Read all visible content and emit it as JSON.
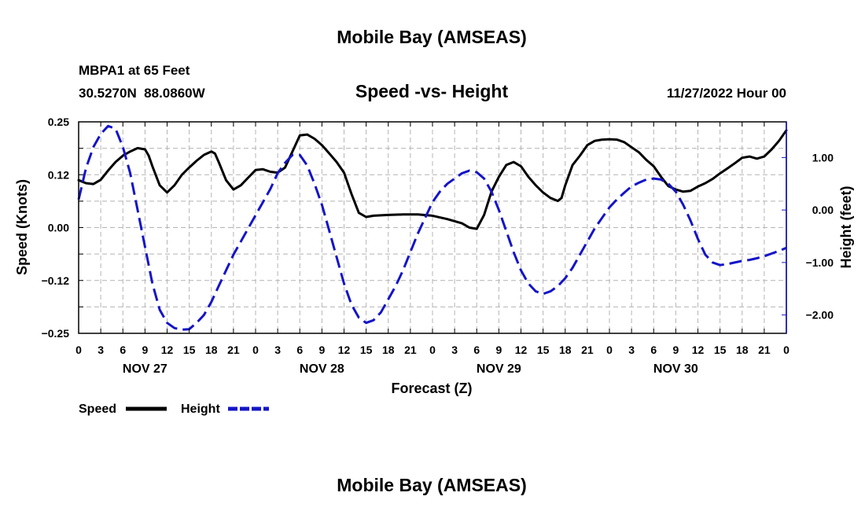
{
  "page": {
    "title_top": "Mobile Bay (AMSEAS)",
    "title_bottom": "Mobile Bay (AMSEAS)",
    "station_line": "MBPA1 at 65 Feet",
    "coords_line": "30.5270N  88.0860W",
    "chart_title": "Speed -vs- Height",
    "date_line": "11/27/2022 Hour 00"
  },
  "legend": {
    "speed_label": "Speed",
    "height_label": "Height"
  },
  "colors": {
    "speed": "#000000",
    "height": "#1414c8",
    "grid": "#b4b4b4",
    "axis": "#000000"
  },
  "chart_data": {
    "type": "line",
    "title": "Speed -vs- Height",
    "xlabel": "Forecast (Z)",
    "ylabel_left": "Speed (Knots)",
    "ylabel_right": "Height (feet)",
    "x_range_hours": [
      0,
      96
    ],
    "ylim_left": [
      -0.25,
      0.25
    ],
    "ylim_right": [
      -2.35,
      1.68
    ],
    "left_ticks": [
      {
        "value": 0.25,
        "label": "0.25"
      },
      {
        "value": 0.125,
        "label": "0.12"
      },
      {
        "value": 0.0,
        "label": "0.00"
      },
      {
        "value": -0.125,
        "label": "−0.12"
      },
      {
        "value": -0.25,
        "label": "−0.25"
      }
    ],
    "right_ticks": [
      {
        "value": 1.0,
        "label": "1.00"
      },
      {
        "value": 0.0,
        "label": "0.00"
      },
      {
        "value": -1.0,
        "label": "−1.00"
      },
      {
        "value": -2.0,
        "label": "−2.00"
      }
    ],
    "x_ticks": [
      {
        "hour": 0,
        "label": "0"
      },
      {
        "hour": 3,
        "label": "3"
      },
      {
        "hour": 6,
        "label": "6"
      },
      {
        "hour": 9,
        "label": "9"
      },
      {
        "hour": 12,
        "label": "12"
      },
      {
        "hour": 15,
        "label": "15"
      },
      {
        "hour": 18,
        "label": "18"
      },
      {
        "hour": 21,
        "label": "21"
      },
      {
        "hour": 24,
        "label": "0"
      },
      {
        "hour": 27,
        "label": "3"
      },
      {
        "hour": 30,
        "label": "6"
      },
      {
        "hour": 33,
        "label": "9"
      },
      {
        "hour": 36,
        "label": "12"
      },
      {
        "hour": 39,
        "label": "15"
      },
      {
        "hour": 42,
        "label": "18"
      },
      {
        "hour": 45,
        "label": "21"
      },
      {
        "hour": 48,
        "label": "0"
      },
      {
        "hour": 51,
        "label": "3"
      },
      {
        "hour": 54,
        "label": "6"
      },
      {
        "hour": 57,
        "label": "9"
      },
      {
        "hour": 60,
        "label": "12"
      },
      {
        "hour": 63,
        "label": "15"
      },
      {
        "hour": 66,
        "label": "18"
      },
      {
        "hour": 69,
        "label": "21"
      },
      {
        "hour": 72,
        "label": "0"
      },
      {
        "hour": 75,
        "label": "3"
      },
      {
        "hour": 78,
        "label": "6"
      },
      {
        "hour": 81,
        "label": "9"
      },
      {
        "hour": 84,
        "label": "12"
      },
      {
        "hour": 87,
        "label": "15"
      },
      {
        "hour": 90,
        "label": "18"
      },
      {
        "hour": 93,
        "label": "21"
      },
      {
        "hour": 96,
        "label": "0"
      }
    ],
    "day_labels": [
      {
        "hour": 9,
        "label": "NOV 27"
      },
      {
        "hour": 33,
        "label": "NOV 28"
      },
      {
        "hour": 57,
        "label": "NOV 29"
      },
      {
        "hour": 81,
        "label": "NOV 30"
      }
    ],
    "series": [
      {
        "name": "Speed",
        "axis": "left",
        "style": "solid",
        "points": [
          [
            0,
            0.112
          ],
          [
            1,
            0.105
          ],
          [
            2,
            0.103
          ],
          [
            3,
            0.113
          ],
          [
            4,
            0.135
          ],
          [
            5,
            0.155
          ],
          [
            6,
            0.17
          ],
          [
            7,
            0.18
          ],
          [
            8,
            0.188
          ],
          [
            9,
            0.185
          ],
          [
            9.5,
            0.17
          ],
          [
            10,
            0.145
          ],
          [
            11,
            0.1
          ],
          [
            12,
            0.083
          ],
          [
            13,
            0.1
          ],
          [
            14,
            0.125
          ],
          [
            15,
            0.142
          ],
          [
            16,
            0.158
          ],
          [
            17,
            0.172
          ],
          [
            18,
            0.18
          ],
          [
            18.5,
            0.175
          ],
          [
            19,
            0.155
          ],
          [
            20,
            0.112
          ],
          [
            21,
            0.09
          ],
          [
            22,
            0.1
          ],
          [
            23,
            0.118
          ],
          [
            24,
            0.136
          ],
          [
            25,
            0.138
          ],
          [
            26,
            0.132
          ],
          [
            27,
            0.13
          ],
          [
            28,
            0.142
          ],
          [
            29,
            0.18
          ],
          [
            30,
            0.218
          ],
          [
            31,
            0.22
          ],
          [
            32,
            0.21
          ],
          [
            33,
            0.195
          ],
          [
            34,
            0.175
          ],
          [
            35,
            0.155
          ],
          [
            36,
            0.13
          ],
          [
            37,
            0.08
          ],
          [
            38,
            0.035
          ],
          [
            39,
            0.025
          ],
          [
            40,
            0.028
          ],
          [
            42,
            0.03
          ],
          [
            44,
            0.031
          ],
          [
            46,
            0.031
          ],
          [
            48,
            0.028
          ],
          [
            50,
            0.02
          ],
          [
            52,
            0.01
          ],
          [
            53,
            0.0
          ],
          [
            54,
            -0.003
          ],
          [
            55,
            0.03
          ],
          [
            56,
            0.085
          ],
          [
            57,
            0.12
          ],
          [
            58,
            0.148
          ],
          [
            59,
            0.155
          ],
          [
            60,
            0.145
          ],
          [
            61,
            0.12
          ],
          [
            62,
            0.1
          ],
          [
            63,
            0.083
          ],
          [
            64,
            0.07
          ],
          [
            65,
            0.063
          ],
          [
            65.5,
            0.07
          ],
          [
            66,
            0.1
          ],
          [
            67,
            0.148
          ],
          [
            68,
            0.17
          ],
          [
            69,
            0.195
          ],
          [
            70,
            0.205
          ],
          [
            71,
            0.208
          ],
          [
            72,
            0.209
          ],
          [
            73,
            0.208
          ],
          [
            74,
            0.202
          ],
          [
            75,
            0.19
          ],
          [
            76,
            0.178
          ],
          [
            77,
            0.16
          ],
          [
            78,
            0.145
          ],
          [
            79,
            0.12
          ],
          [
            80,
            0.098
          ],
          [
            81,
            0.09
          ],
          [
            82,
            0.085
          ],
          [
            83,
            0.087
          ],
          [
            84,
            0.097
          ],
          [
            85,
            0.105
          ],
          [
            86,
            0.115
          ],
          [
            87,
            0.128
          ],
          [
            88,
            0.14
          ],
          [
            89,
            0.152
          ],
          [
            90,
            0.165
          ],
          [
            91,
            0.168
          ],
          [
            92,
            0.163
          ],
          [
            93,
            0.168
          ],
          [
            94,
            0.185
          ],
          [
            95,
            0.205
          ],
          [
            96,
            0.23
          ]
        ]
      },
      {
        "name": "Height",
        "axis": "right",
        "style": "dashed",
        "points": [
          [
            0,
            0.2
          ],
          [
            1,
            0.8
          ],
          [
            2,
            1.2
          ],
          [
            3,
            1.45
          ],
          [
            4,
            1.6
          ],
          [
            5,
            1.55
          ],
          [
            6,
            1.2
          ],
          [
            7,
            0.7
          ],
          [
            8,
            0.0
          ],
          [
            9,
            -0.7
          ],
          [
            10,
            -1.4
          ],
          [
            11,
            -1.9
          ],
          [
            12,
            -2.15
          ],
          [
            13,
            -2.25
          ],
          [
            14,
            -2.28
          ],
          [
            15,
            -2.27
          ],
          [
            16,
            -2.15
          ],
          [
            17,
            -2.0
          ],
          [
            18,
            -1.75
          ],
          [
            19,
            -1.45
          ],
          [
            20,
            -1.15
          ],
          [
            21,
            -0.85
          ],
          [
            22,
            -0.6
          ],
          [
            23,
            -0.35
          ],
          [
            24,
            -0.1
          ],
          [
            25,
            0.15
          ],
          [
            26,
            0.4
          ],
          [
            27,
            0.7
          ],
          [
            28,
            0.9
          ],
          [
            29,
            1.05
          ],
          [
            30,
            1.05
          ],
          [
            31,
            0.85
          ],
          [
            32,
            0.5
          ],
          [
            33,
            0.1
          ],
          [
            34,
            -0.4
          ],
          [
            35,
            -0.9
          ],
          [
            36,
            -1.4
          ],
          [
            37,
            -1.8
          ],
          [
            38,
            -2.05
          ],
          [
            39,
            -2.15
          ],
          [
            40,
            -2.1
          ],
          [
            41,
            -1.95
          ],
          [
            42,
            -1.7
          ],
          [
            43,
            -1.45
          ],
          [
            44,
            -1.15
          ],
          [
            45,
            -0.8
          ],
          [
            46,
            -0.45
          ],
          [
            47,
            -0.15
          ],
          [
            48,
            0.15
          ],
          [
            49,
            0.35
          ],
          [
            50,
            0.5
          ],
          [
            51,
            0.6
          ],
          [
            52,
            0.7
          ],
          [
            53,
            0.75
          ],
          [
            54,
            0.72
          ],
          [
            55,
            0.6
          ],
          [
            56,
            0.35
          ],
          [
            57,
            0.0
          ],
          [
            58,
            -0.4
          ],
          [
            59,
            -0.8
          ],
          [
            60,
            -1.15
          ],
          [
            61,
            -1.4
          ],
          [
            62,
            -1.55
          ],
          [
            63,
            -1.6
          ],
          [
            64,
            -1.55
          ],
          [
            65,
            -1.45
          ],
          [
            66,
            -1.3
          ],
          [
            67,
            -1.1
          ],
          [
            68,
            -0.85
          ],
          [
            69,
            -0.6
          ],
          [
            70,
            -0.35
          ],
          [
            71,
            -0.15
          ],
          [
            72,
            0.05
          ],
          [
            73,
            0.2
          ],
          [
            74,
            0.33
          ],
          [
            75,
            0.45
          ],
          [
            76,
            0.52
          ],
          [
            77,
            0.58
          ],
          [
            78,
            0.6
          ],
          [
            79,
            0.58
          ],
          [
            80,
            0.5
          ],
          [
            81,
            0.35
          ],
          [
            82,
            0.1
          ],
          [
            83,
            -0.2
          ],
          [
            84,
            -0.55
          ],
          [
            85,
            -0.85
          ],
          [
            86,
            -1.0
          ],
          [
            87,
            -1.05
          ],
          [
            88,
            -1.03
          ],
          [
            89,
            -1.0
          ],
          [
            90,
            -0.97
          ],
          [
            91,
            -0.95
          ],
          [
            92,
            -0.92
          ],
          [
            93,
            -0.88
          ],
          [
            94,
            -0.83
          ],
          [
            95,
            -0.78
          ],
          [
            96,
            -0.72
          ]
        ]
      }
    ]
  }
}
